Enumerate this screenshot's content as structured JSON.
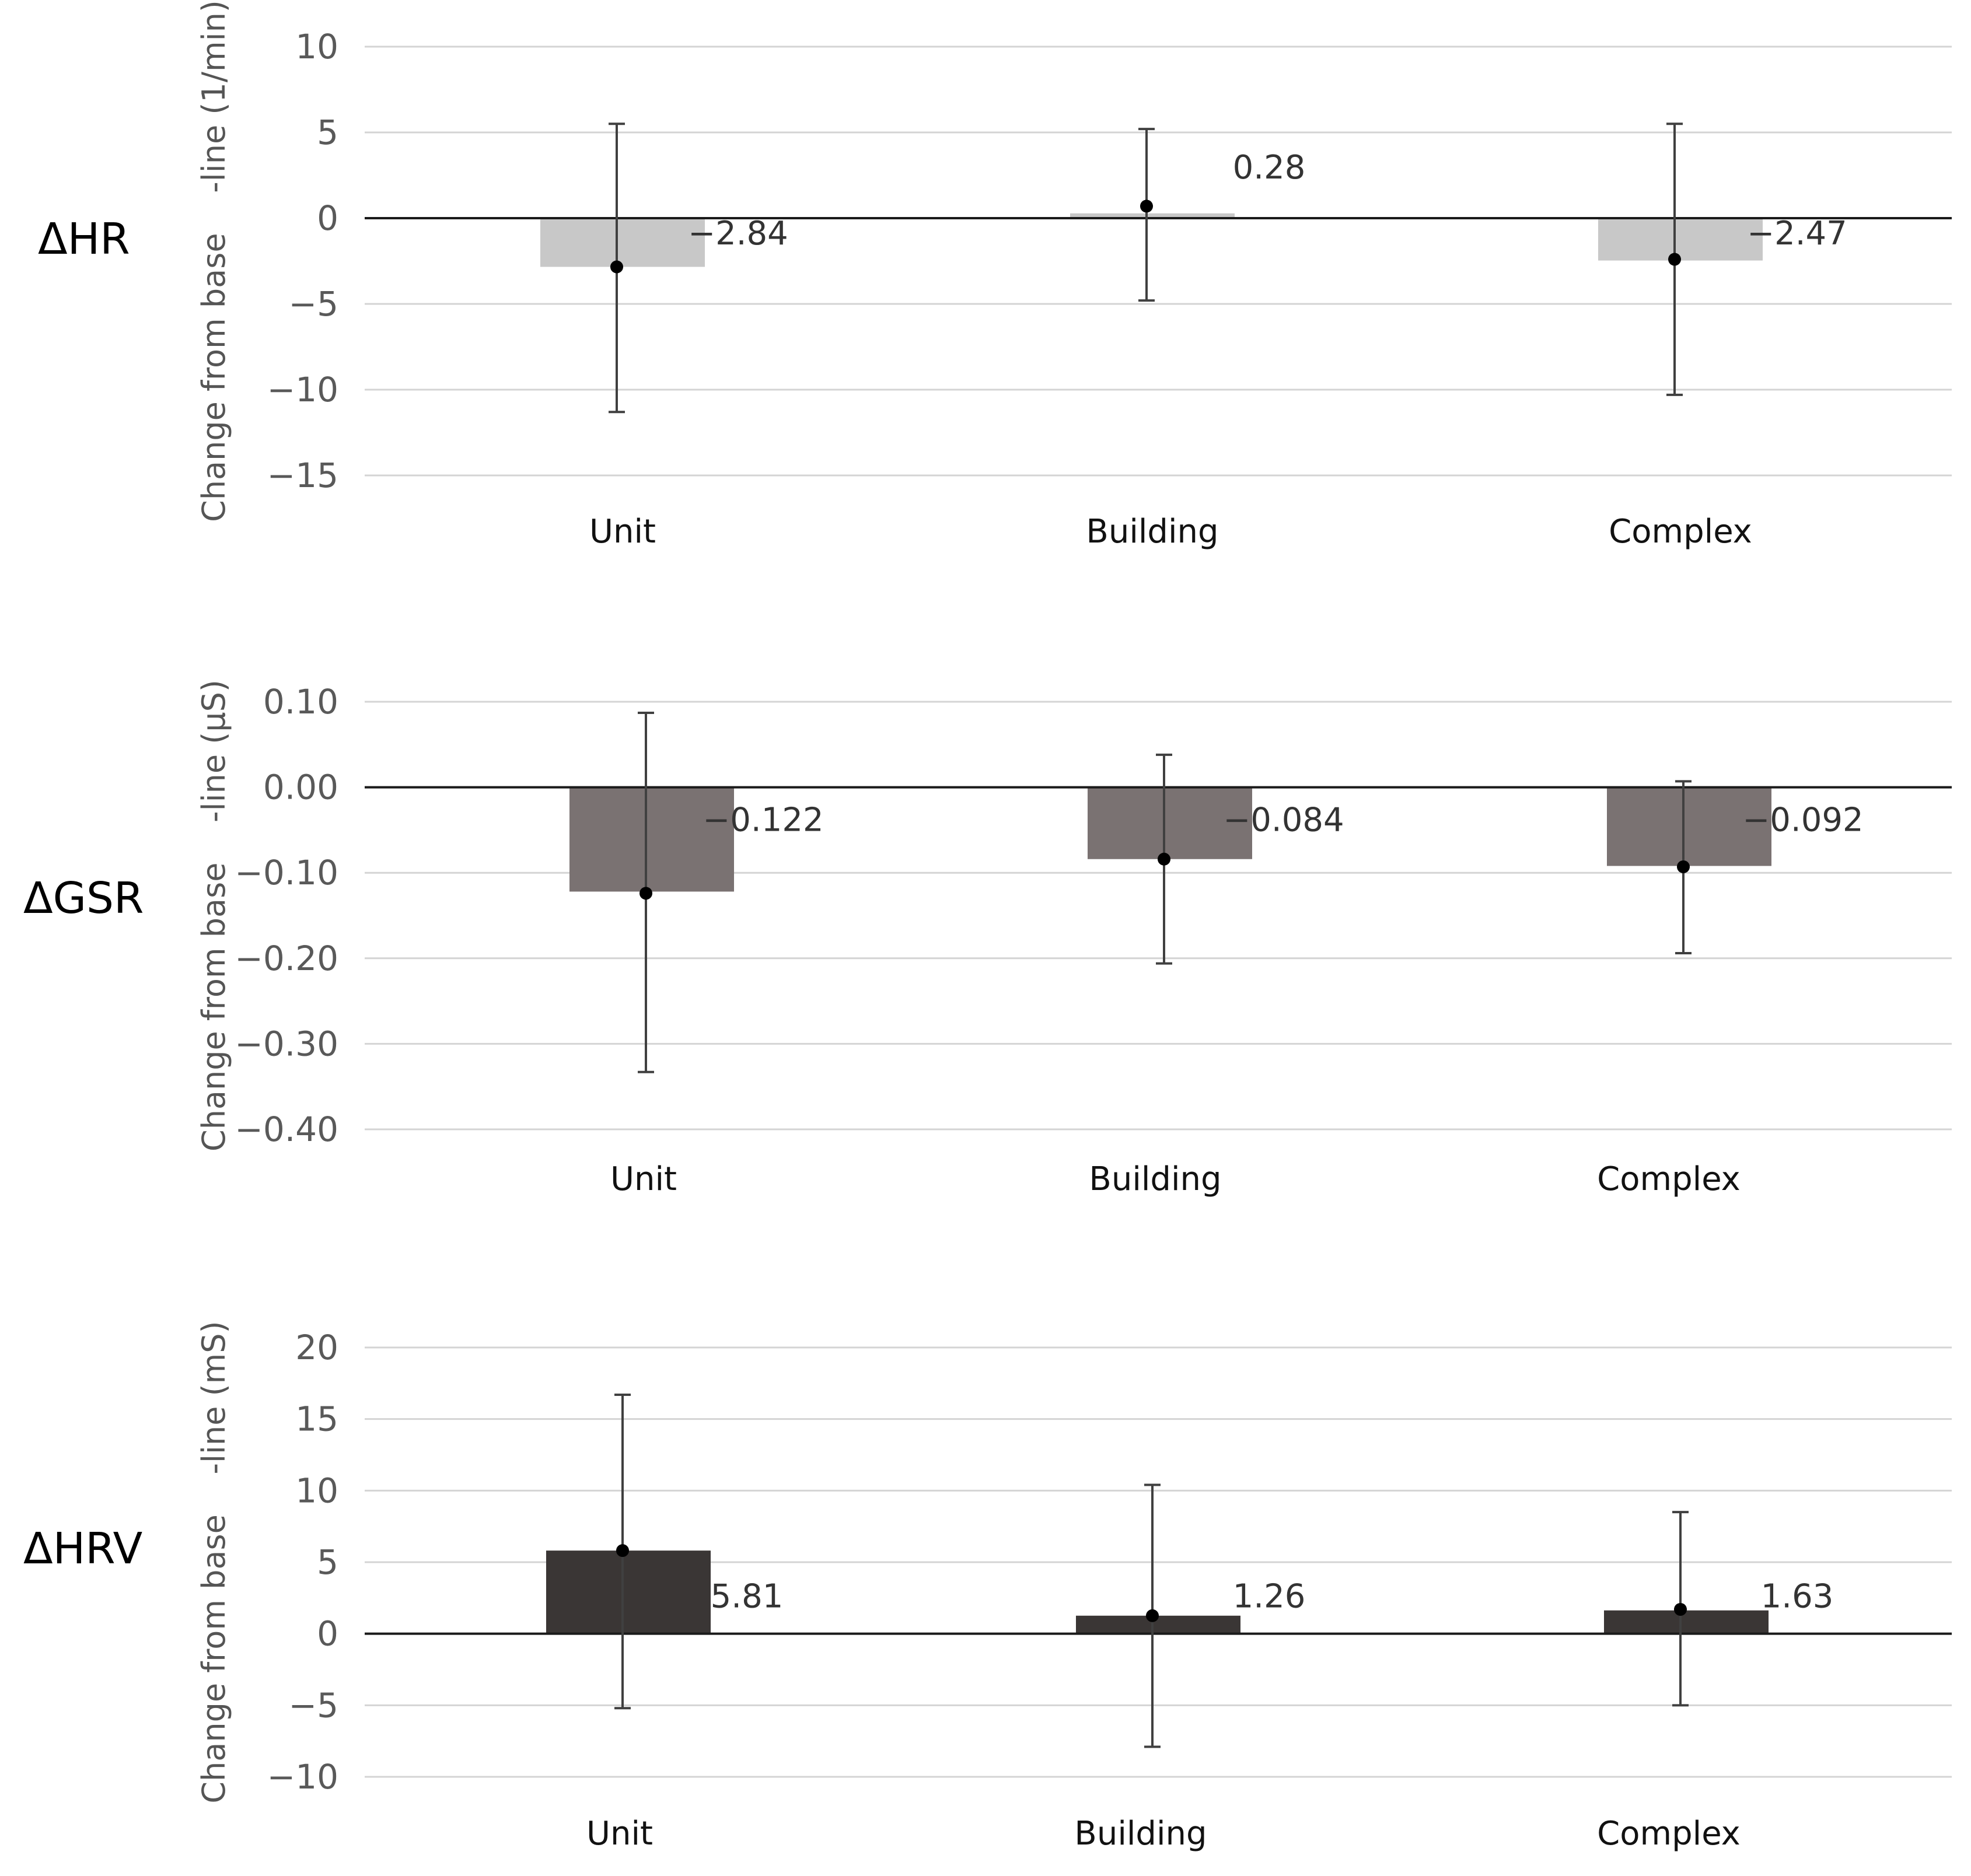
{
  "chart_data": [
    {
      "type": "bar",
      "panel_label": "ΔHR",
      "ylabel": "Change from base    -line (1/min)",
      "categories": [
        "Unit",
        "Building",
        "Complex"
      ],
      "values": [
        -2.84,
        0.28,
        -2.47
      ],
      "value_labels": [
        "−2.84",
        "0.28",
        "−2.47"
      ],
      "error_bars": [
        [
          -11.3,
          5.5
        ],
        [
          -4.8,
          5.2
        ],
        [
          -10.3,
          5.5
        ]
      ],
      "means": [
        -2.84,
        0.7,
        -2.4
      ],
      "ylim": [
        -15,
        10
      ],
      "ticks": [
        10,
        5,
        0,
        -5,
        -10,
        -15
      ],
      "tick_labels": [
        "10",
        "5",
        "0",
        "−5",
        "−10",
        "−15"
      ],
      "bar_color": "#c8c8c8"
    },
    {
      "type": "bar",
      "panel_label": "ΔGSR",
      "ylabel": "Change from base    -line (μS)",
      "categories": [
        "Unit",
        "Building",
        "Complex"
      ],
      "values": [
        -0.122,
        -0.084,
        -0.092
      ],
      "value_labels": [
        "−0.122",
        "−0.084",
        "−0.092"
      ],
      "error_bars": [
        [
          -0.333,
          0.087
        ],
        [
          -0.206,
          0.038
        ],
        [
          -0.194,
          0.007
        ]
      ],
      "means": [
        -0.124,
        -0.084,
        -0.093
      ],
      "ylim": [
        -0.4,
        0.1
      ],
      "ticks": [
        0.1,
        0.0,
        -0.1,
        -0.2,
        -0.3,
        -0.4
      ],
      "tick_labels": [
        "0.10",
        "0.00",
        "−0.10",
        "−0.20",
        "−0.30",
        "−0.40"
      ],
      "bar_color": "#7a7272"
    },
    {
      "type": "bar",
      "panel_label": "ΔHRV",
      "ylabel": "Change from base    -line (mS)",
      "categories": [
        "Unit",
        "Building",
        "Complex"
      ],
      "values": [
        5.81,
        1.26,
        1.63
      ],
      "value_labels": [
        "5.81",
        "1.26",
        "1.63"
      ],
      "error_bars": [
        [
          -5.2,
          16.7
        ],
        [
          -7.9,
          10.4
        ],
        [
          -5.0,
          8.5
        ]
      ],
      "means": [
        5.81,
        1.26,
        1.7
      ],
      "ylim": [
        -10,
        20
      ],
      "ticks": [
        20,
        15,
        10,
        5,
        0,
        -5,
        -10
      ],
      "tick_labels": [
        "20",
        "15",
        "10",
        "5",
        "0",
        "−5",
        "−10"
      ],
      "bar_color": "#3a3635"
    }
  ]
}
